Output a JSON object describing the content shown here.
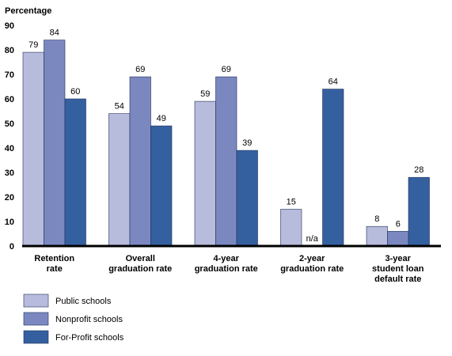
{
  "chart_data": {
    "type": "bar",
    "title": "",
    "ylabel": "Percentage",
    "xlabel": "",
    "ylim": [
      0,
      90
    ],
    "yticks": [
      0,
      10,
      20,
      30,
      40,
      50,
      60,
      70,
      80,
      90
    ],
    "grid": false,
    "legend_position": "bottom-left",
    "categories": [
      [
        "Retention",
        "rate"
      ],
      [
        "Overall",
        "graduation rate"
      ],
      [
        "4-year",
        "graduation rate"
      ],
      [
        "2-year",
        "graduation rate"
      ],
      [
        "3-year",
        "student loan",
        "default rate"
      ]
    ],
    "series": [
      {
        "name": "Public schools",
        "color": "#b8bcdc",
        "values": [
          79,
          54,
          59,
          15,
          8
        ],
        "labels": [
          "79",
          "54",
          "59",
          "15",
          "8"
        ]
      },
      {
        "name": "Nonprofit schools",
        "color": "#7b88c0",
        "values": [
          84,
          69,
          69,
          null,
          6
        ],
        "labels": [
          "84",
          "69",
          "69",
          "n/a",
          "6"
        ]
      },
      {
        "name": "For-Profit schools",
        "color": "#3560a0",
        "values": [
          60,
          49,
          39,
          64,
          28
        ],
        "labels": [
          "60",
          "49",
          "39",
          "64",
          "28"
        ]
      }
    ]
  }
}
